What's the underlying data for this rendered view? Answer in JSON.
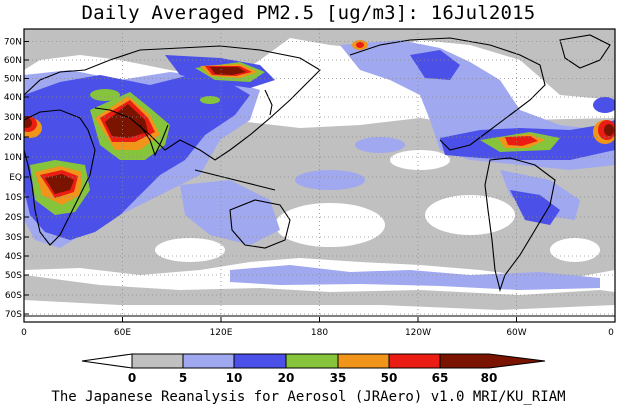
{
  "title": "Daily Averaged PM2.5 [ug/m3]: 16Jul2015",
  "caption": "The Japanese Reanalysis for Aerosol (JRAero) v1.0 MRI/KU_RIAM",
  "lat_labels": [
    "70N",
    "60N",
    "50N",
    "40N",
    "30N",
    "20N",
    "10N",
    "EQ",
    "10S",
    "20S",
    "30S",
    "40S",
    "50S",
    "60S",
    "70S"
  ],
  "lon_labels": [
    "0",
    "60E",
    "120E",
    "180",
    "120W",
    "60W",
    "0"
  ],
  "legend": {
    "bins": [
      {
        "color": "#ffffff"
      },
      {
        "color": "#c0c0c0"
      },
      {
        "color": "#a0a8f0"
      },
      {
        "color": "#4a50e8"
      },
      {
        "color": "#86c43c"
      },
      {
        "color": "#f0941a"
      },
      {
        "color": "#ea1c14"
      },
      {
        "color": "#7a1400"
      }
    ],
    "tick_labels": [
      "0",
      "5",
      "10",
      "20",
      "35",
      "50",
      "65",
      "80"
    ]
  },
  "colors": {
    "white": "#ffffff",
    "grey": "#c0c0c0",
    "light_blue": "#a0a8f0",
    "blue": "#4a50e8",
    "green": "#86c43c",
    "orange": "#f0941a",
    "red": "#ea1c14",
    "dark_red": "#7a1400"
  }
}
